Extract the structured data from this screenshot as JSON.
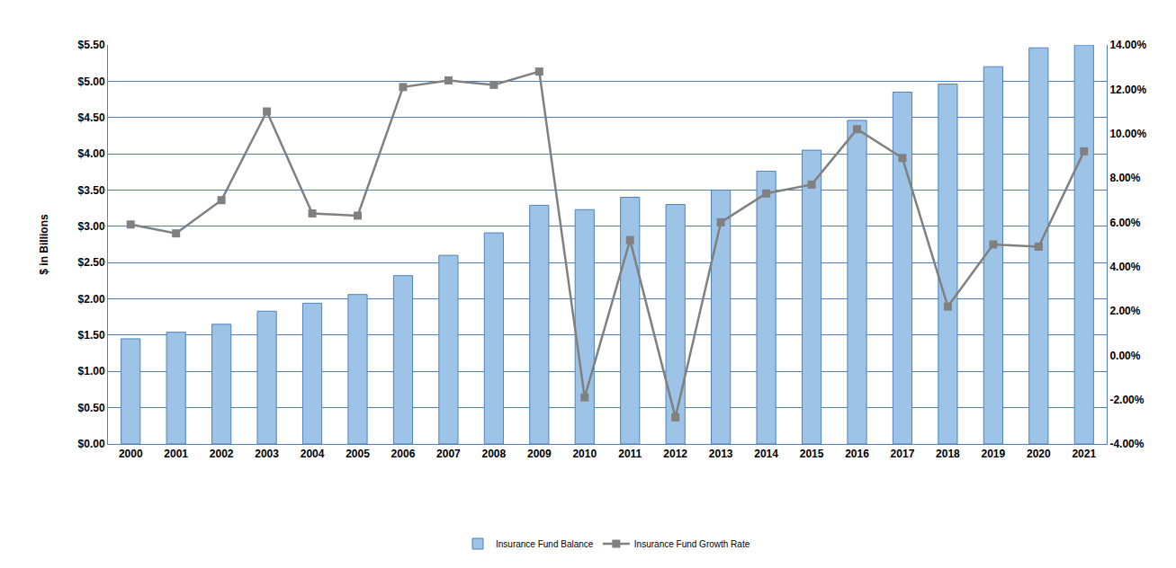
{
  "chart_data": {
    "type": "bar",
    "categories": [
      "2000",
      "2001",
      "2002",
      "2003",
      "2004",
      "2005",
      "2006",
      "2007",
      "2008",
      "2009",
      "2010",
      "2011",
      "2012",
      "2013",
      "2014",
      "2015",
      "2016",
      "2017",
      "2018",
      "2019",
      "2020",
      "2021"
    ],
    "y_label": "$ in Billions",
    "series": [
      {
        "name": "Insurance Fund Balance",
        "type": "bar",
        "color": "#9dc3e6",
        "values": [
          1.45,
          1.54,
          1.65,
          1.83,
          1.94,
          2.06,
          2.32,
          2.6,
          2.91,
          3.29,
          3.23,
          3.4,
          3.3,
          3.5,
          3.76,
          4.05,
          4.46,
          4.85,
          4.96,
          5.2,
          5.46,
          5.5
        ]
      },
      {
        "name": "Insurance Fund Growth Rate",
        "type": "line",
        "color": "#808080",
        "marker": "square",
        "axis": "y2",
        "values": [
          5.9,
          5.5,
          7.0,
          11.0,
          6.4,
          6.3,
          12.1,
          12.4,
          12.2,
          12.8,
          -1.9,
          5.2,
          -2.8,
          6.0,
          7.3,
          7.7,
          10.2,
          8.9,
          2.2,
          5.0,
          4.9,
          9.2
        ]
      }
    ],
    "ylim": [
      0,
      5.5
    ],
    "yticks": [
      {
        "value": 0,
        "label": "$0.00"
      },
      {
        "value": 0.5,
        "label": "$0.50"
      },
      {
        "value": 1,
        "label": "$1.00"
      },
      {
        "value": 1.5,
        "label": "$1.50"
      },
      {
        "value": 2,
        "label": "$2.00"
      },
      {
        "value": 2.5,
        "label": "$2.50"
      },
      {
        "value": 3,
        "label": "$3.00"
      },
      {
        "value": 3.5,
        "label": "$3.50"
      },
      {
        "value": 4,
        "label": "$4.00"
      },
      {
        "value": 4.5,
        "label": "$4.50"
      },
      {
        "value": 5,
        "label": "$5.00"
      },
      {
        "value": 5.5,
        "label": "$5.50"
      }
    ],
    "y2lim": [
      -4,
      14
    ],
    "y2ticks": [
      {
        "value": -4,
        "label": "-4.00%"
      },
      {
        "value": -2,
        "label": "-2.00%"
      },
      {
        "value": 0,
        "label": "0.00%"
      },
      {
        "value": 2,
        "label": "2.00%"
      },
      {
        "value": 4,
        "label": "4.00%"
      },
      {
        "value": 6,
        "label": "6.00%"
      },
      {
        "value": 8,
        "label": "8.00%"
      },
      {
        "value": 10,
        "label": "10.00%"
      },
      {
        "value": 12,
        "label": "12.00%"
      },
      {
        "value": 14,
        "label": "14.00%"
      }
    ],
    "grid": true,
    "legend": "bottom"
  }
}
